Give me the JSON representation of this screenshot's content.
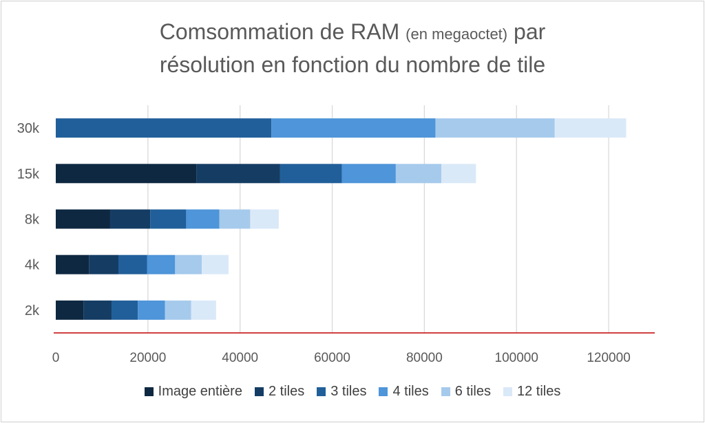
{
  "title": {
    "line1_main": "Comsommation de RAM",
    "line1_paren": "(en megaoctet)",
    "line1_end": "par",
    "line2": "résolution en fonction du nombre de tile"
  },
  "chart_data": {
    "type": "bar",
    "orientation": "horizontal",
    "stacked": true,
    "categories": [
      "2k",
      "4k",
      "8k",
      "15k",
      "30k"
    ],
    "series": [
      {
        "name": "Image entière",
        "color": "#0e2841",
        "values": [
          6000,
          7200,
          11800,
          30500,
          0
        ]
      },
      {
        "name": "2 tiles",
        "color": "#153d64",
        "values": [
          6100,
          6400,
          8700,
          18200,
          0
        ]
      },
      {
        "name": "3 tiles",
        "color": "#215f9a",
        "values": [
          5700,
          6200,
          7800,
          13400,
          46800
        ]
      },
      {
        "name": "4 tiles",
        "color": "#4e95d9",
        "values": [
          5900,
          6100,
          7200,
          11700,
          35600
        ]
      },
      {
        "name": "6 tiles",
        "color": "#a6caec",
        "values": [
          5700,
          5800,
          6700,
          9900,
          25900
        ]
      },
      {
        "name": "12 tiles",
        "color": "#dae9f8",
        "values": [
          5400,
          5800,
          6200,
          7500,
          15500
        ]
      }
    ],
    "xlim": [
      0,
      130000
    ],
    "xticks": [
      "0",
      "20000",
      "40000",
      "60000",
      "80000",
      "100000",
      "120000"
    ],
    "xtick_values": [
      0,
      20000,
      40000,
      60000,
      80000,
      100000,
      120000
    ],
    "xlabel": "",
    "ylabel": "",
    "grid": true,
    "legend_position": "bottom"
  }
}
